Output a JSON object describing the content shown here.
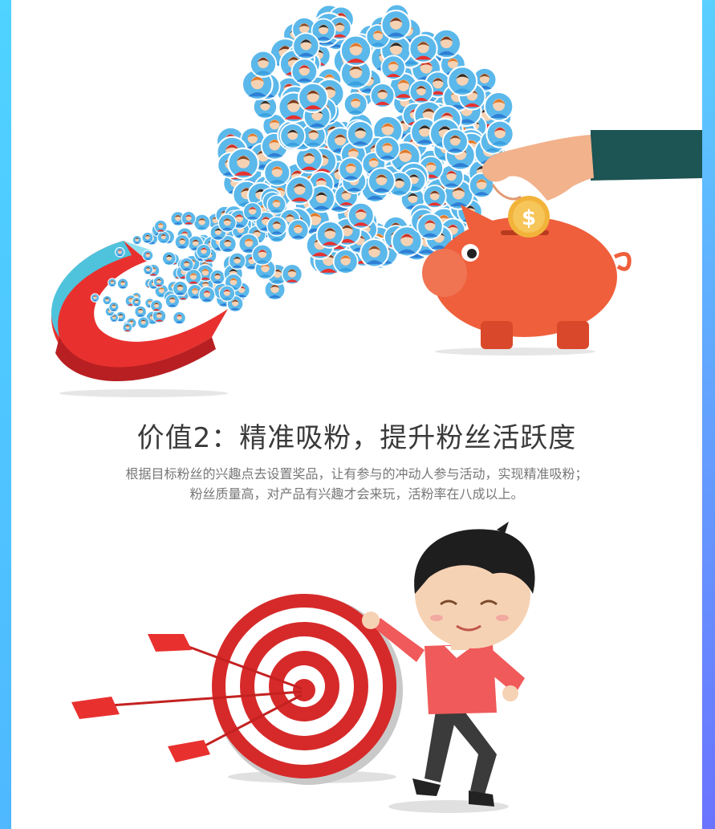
{
  "section": {
    "title": "价值2：精准吸粉，提升粉丝活跃度",
    "description_line1": "根据目标粉丝的兴趣点去设置奖品，让有参与的冲动人参与活动，实现精准吸粉；",
    "description_line2": "粉丝质量高，对产品有兴趣才会来玩，活粉率在八成以上。"
  },
  "icons": {
    "top": "magnet-attracting-fans-illustration",
    "piggy": "piggy-bank-coin-illustration",
    "bottom": "target-darts-boy-illustration"
  },
  "colors": {
    "accent_blue": "#4fd0ff",
    "accent_red": "#e8312f",
    "pig_orange": "#ef5f3b",
    "sleeve_teal": "#1d5454"
  }
}
